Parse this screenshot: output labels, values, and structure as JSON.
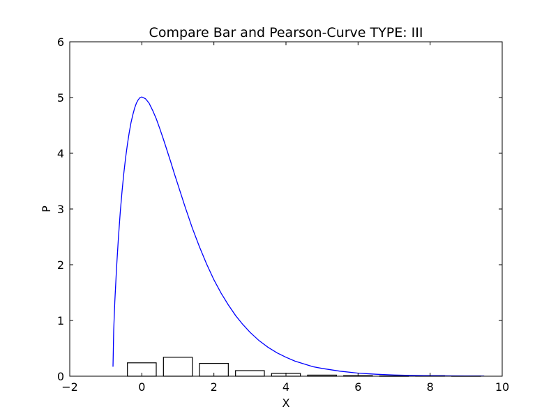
{
  "chart_data": {
    "type": "bar",
    "title": "Compare Bar and Pearson-Curve TYPE: III",
    "xlabel": "X",
    "ylabel": "P",
    "xlim": [
      -2,
      10
    ],
    "ylim": [
      0,
      6
    ],
    "xticks": [
      "−2",
      "0",
      "2",
      "4",
      "6",
      "8",
      "10"
    ],
    "yticks": [
      "0",
      "1",
      "2",
      "3",
      "4",
      "5",
      "6"
    ],
    "grid": false,
    "legend": "none",
    "bar_color": "#ffffff",
    "bar_edge_color": "#000000",
    "curve_color": "#0000ff",
    "bars": [
      {
        "x": 0,
        "value": 0.24
      },
      {
        "x": 1,
        "value": 0.34
      },
      {
        "x": 2,
        "value": 0.23
      },
      {
        "x": 3,
        "value": 0.1
      },
      {
        "x": 4,
        "value": 0.05
      },
      {
        "x": 5,
        "value": 0.02
      },
      {
        "x": 6,
        "value": 0.01
      },
      {
        "x": 7,
        "value": 0.005
      },
      {
        "x": 8,
        "value": 0.01
      },
      {
        "x": 9,
        "value": 0.005
      }
    ],
    "curve": {
      "x": [
        -0.8,
        -0.78,
        -0.75,
        -0.7,
        -0.65,
        -0.6,
        -0.55,
        -0.5,
        -0.45,
        -0.4,
        -0.35,
        -0.3,
        -0.25,
        -0.2,
        -0.15,
        -0.1,
        -0.05,
        0,
        0.1,
        0.2,
        0.3,
        0.4,
        0.5,
        0.6,
        0.7,
        0.8,
        0.9,
        1.0,
        1.2,
        1.4,
        1.6,
        1.8,
        2.0,
        2.2,
        2.4,
        2.6,
        2.8,
        3.0,
        3.25,
        3.5,
        3.75,
        4.0,
        4.25,
        4.5,
        4.75,
        5.0,
        5.5,
        6.0,
        6.5,
        7.0,
        7.5,
        8.0,
        8.5,
        9.0,
        9.5
      ],
      "y": [
        0.17,
        0.83,
        1.33,
        1.96,
        2.48,
        2.93,
        3.31,
        3.64,
        3.92,
        4.16,
        4.37,
        4.55,
        4.69,
        4.81,
        4.9,
        4.96,
        5.0,
        5.01,
        4.98,
        4.9,
        4.77,
        4.62,
        4.44,
        4.25,
        4.05,
        3.85,
        3.64,
        3.44,
        3.04,
        2.66,
        2.32,
        2.01,
        1.73,
        1.49,
        1.28,
        1.09,
        0.93,
        0.79,
        0.64,
        0.52,
        0.42,
        0.34,
        0.27,
        0.22,
        0.17,
        0.14,
        0.09,
        0.055,
        0.035,
        0.022,
        0.014,
        0.009,
        0.006,
        0.004,
        0.003
      ]
    }
  }
}
